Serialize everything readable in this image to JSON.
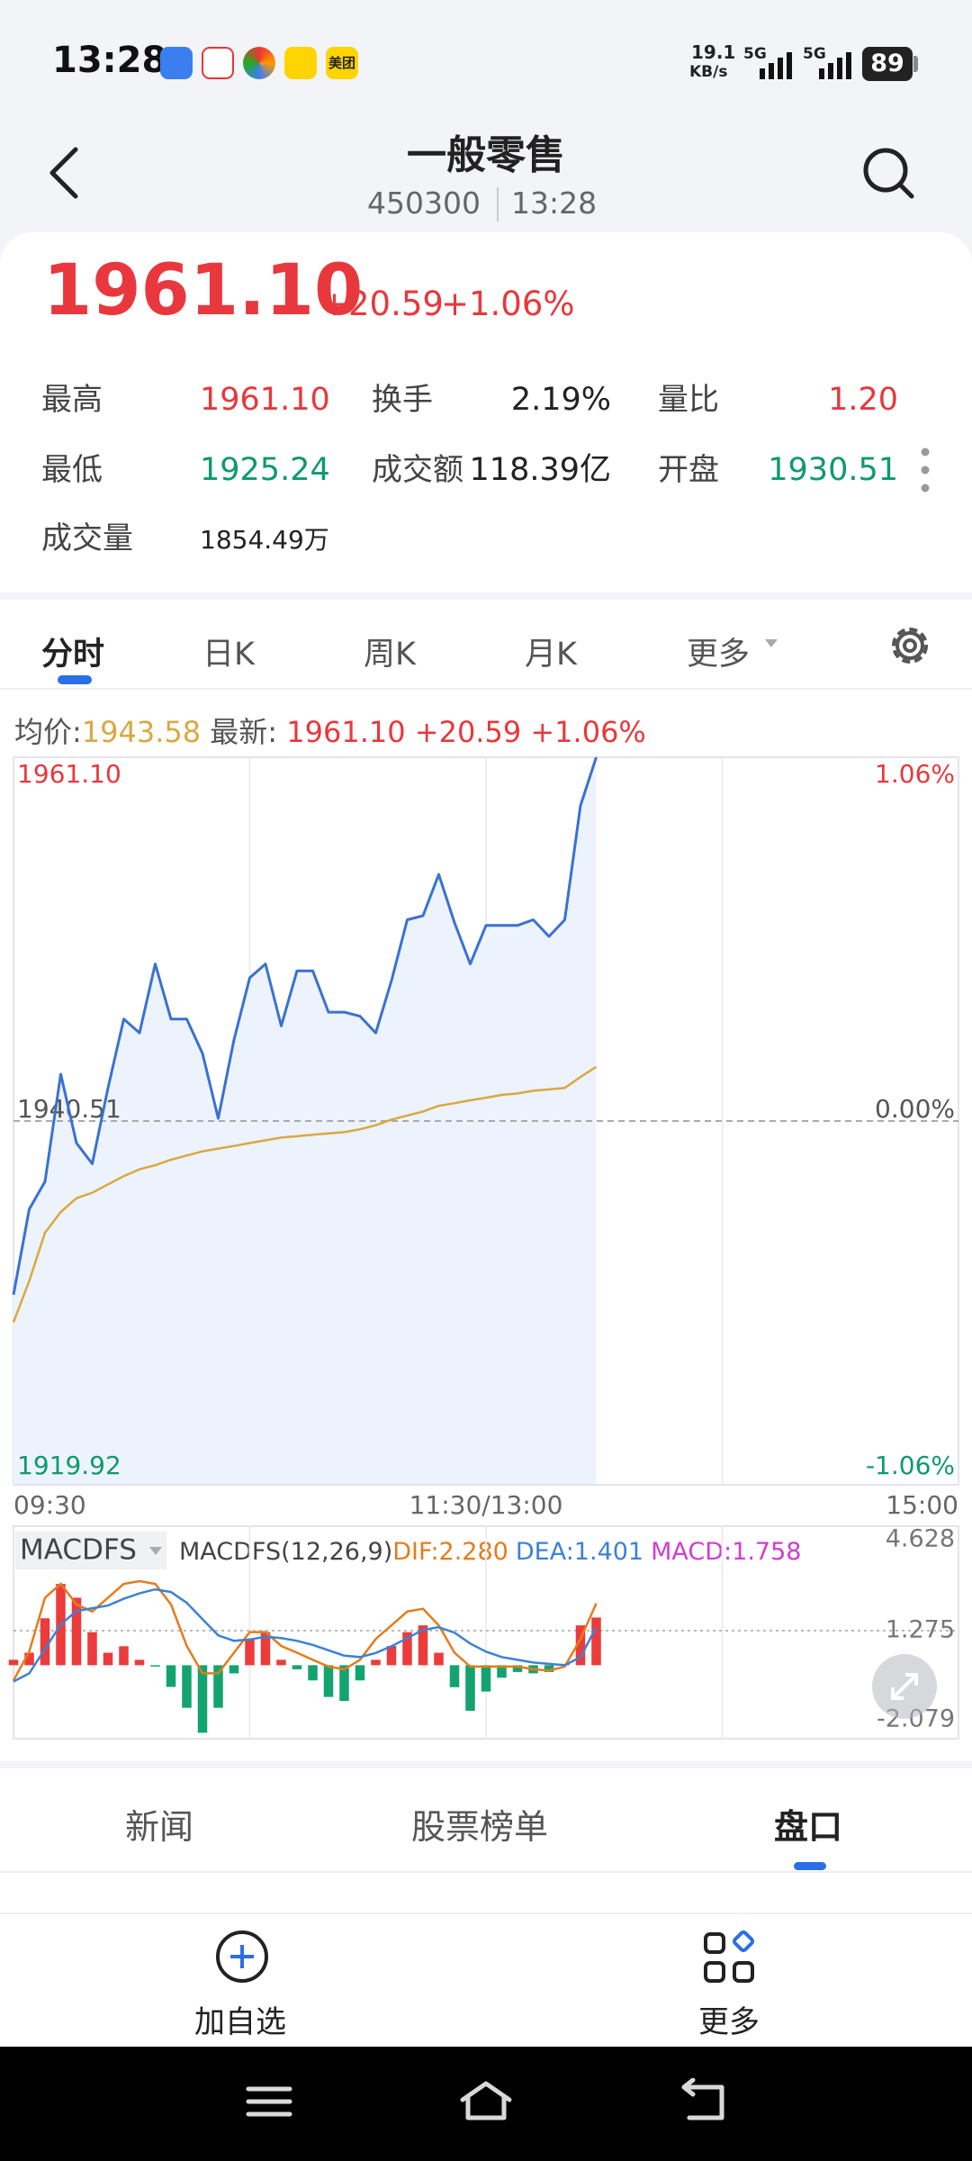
{
  "status_bar": {
    "time": "13:28",
    "app": "美团",
    "speed": "19.1",
    "speed_unit": "KB/s",
    "network": [
      "5G",
      "5G"
    ],
    "battery": "89"
  },
  "header": {
    "title": "一般零售",
    "code": "450300",
    "time": "13:28"
  },
  "quote": {
    "price": "1961.10",
    "change": "+20.59",
    "change_pct": "+1.06%"
  },
  "stats": [
    {
      "label": "最高",
      "value": "1961.10"
    },
    {
      "label": "换手",
      "value": "2.19%"
    },
    {
      "label": "量比",
      "value": "1.20"
    },
    {
      "label": "最低",
      "value": "1925.24"
    },
    {
      "label": "成交额",
      "value": "118.39亿"
    },
    {
      "label": "开盘",
      "value": "1930.51"
    },
    {
      "label": "成交量",
      "value": "1854.49万"
    }
  ],
  "tabs": [
    "分时",
    "日K",
    "周K",
    "月K",
    "更多"
  ],
  "chart_data": [
    {
      "type": "line",
      "legend": [
        {
          "label": "均价:",
          "value": "1943.58"
        },
        {
          "label": "最新:",
          "value": "1961.10 +20.59 +1.06%"
        }
      ],
      "xlim": [
        0,
        240
      ],
      "xticks": [
        {
          "value": 0,
          "label": "09:30"
        },
        {
          "value": 120,
          "label": "11:30/13:00"
        },
        {
          "value": 240,
          "label": "15:00"
        }
      ],
      "ylim": [
        1919.92,
        1961.1
      ],
      "yticks": [
        {
          "value": 1961.1,
          "label": "1961.10"
        },
        {
          "value": 1940.51,
          "label": "1940.51"
        },
        {
          "value": 1919.92,
          "label": "1919.92"
        }
      ],
      "y2lim": [
        -1.06,
        1.06
      ],
      "y2ticks": [
        {
          "value": 1.06,
          "label": "1.06%"
        },
        {
          "value": 0,
          "label": "0.00%"
        },
        {
          "value": -1.06,
          "label": "-1.06%"
        }
      ],
      "x": [
        0,
        4,
        8,
        12,
        16,
        20,
        24,
        28,
        32,
        36,
        40,
        44,
        48,
        52,
        56,
        60,
        64,
        68,
        72,
        76,
        80,
        84,
        88,
        92,
        96,
        100,
        104,
        108,
        112,
        116,
        120,
        124,
        128,
        132,
        136,
        140,
        144,
        148
      ],
      "series": [
        {
          "color": "#3a72d0",
          "fill": "#edf3fd",
          "values": [
            1930.68,
            1935.52,
            1937.08,
            1943.16,
            1939.26,
            1938.09,
            1942.38,
            1946.28,
            1945.5,
            1949.4,
            1946.28,
            1946.28,
            1944.33,
            1940.66,
            1945.11,
            1948.62,
            1949.4,
            1945.89,
            1949.01,
            1949.01,
            1946.67,
            1946.67,
            1946.44,
            1945.5,
            1948.46,
            1951.9,
            1952.13,
            1954.47,
            1951.74,
            1949.4,
            1951.58,
            1951.58,
            1951.58,
            1951.9,
            1950.96,
            1951.9,
            1958.37,
            1961.1
          ]
        },
        {
          "color": "#d9a941",
          "values": [
            1929.12,
            1931.46,
            1934.19,
            1935.36,
            1936.14,
            1936.45,
            1936.92,
            1937.39,
            1937.78,
            1938.01,
            1938.32,
            1938.56,
            1938.79,
            1938.95,
            1939.1,
            1939.26,
            1939.42,
            1939.57,
            1939.65,
            1939.73,
            1939.81,
            1939.88,
            1940.04,
            1940.27,
            1940.59,
            1940.82,
            1941.05,
            1941.37,
            1941.52,
            1941.68,
            1941.83,
            1941.99,
            1942.07,
            1942.22,
            1942.3,
            1942.38,
            1943.0,
            1943.58
          ]
        }
      ]
    },
    {
      "type": "macd",
      "title": "MACDFS",
      "subtitle": "MACDFS(12,26,9)",
      "xlim": [
        0,
        240
      ],
      "ylim": [
        -2.079,
        4.628
      ],
      "yticks": [
        4.628,
        1.275,
        -2.079
      ],
      "x": [
        0,
        4,
        8,
        12,
        16,
        20,
        24,
        28,
        32,
        36,
        40,
        44,
        48,
        52,
        56,
        60,
        64,
        68,
        72,
        76,
        80,
        84,
        88,
        92,
        96,
        100,
        104,
        108,
        112,
        116,
        120,
        124,
        128,
        132,
        136,
        140,
        144,
        148
      ],
      "series": [
        {
          "legend": "DIF:2.280",
          "color": "#e57c1b",
          "values": [
            -0.56,
            0.5,
            2.49,
            3.0,
            2.24,
            1.98,
            2.49,
            3.0,
            3.1,
            3.0,
            2.24,
            0.71,
            -0.3,
            -0.3,
            0.46,
            1.22,
            1.22,
            0.71,
            0.46,
            0.2,
            -0.05,
            -0.15,
            0.2,
            0.97,
            1.47,
            1.98,
            2.08,
            1.47,
            0.46,
            -0.05,
            -0.05,
            -0.05,
            -0.05,
            -0.15,
            -0.2,
            -0.05,
            0.97,
            2.28
          ]
        },
        {
          "legend": "DEA:1.401",
          "color": "#3b82d6",
          "values": [
            -0.6,
            -0.3,
            0.6,
            1.5,
            2.0,
            2.1,
            2.2,
            2.45,
            2.65,
            2.8,
            2.7,
            2.3,
            1.7,
            1.1,
            0.9,
            0.95,
            1.05,
            1.0,
            0.9,
            0.75,
            0.55,
            0.35,
            0.3,
            0.45,
            0.7,
            1.0,
            1.3,
            1.4,
            1.2,
            0.8,
            0.5,
            0.3,
            0.2,
            0.1,
            0.05,
            0.0,
            0.3,
            1.401
          ]
        },
        {
          "legend": "MACD:1.758",
          "color": "#d23cd2",
          "up_color": "#ec3b3b",
          "down_color": "#13a36f",
          "values": [
            0.2,
            0.46,
            1.73,
            3.0,
            2.49,
            1.22,
            0.46,
            0.7,
            0.2,
            -0.05,
            -0.8,
            -1.57,
            -2.49,
            -1.57,
            -0.3,
            0.97,
            1.22,
            0.2,
            -0.15,
            -0.56,
            -1.17,
            -1.32,
            -0.56,
            0.2,
            0.71,
            1.22,
            1.47,
            0.46,
            -0.81,
            -1.68,
            -0.97,
            -0.46,
            -0.25,
            -0.3,
            -0.25,
            0.05,
            1.47,
            1.758
          ]
        }
      ]
    }
  ],
  "bottom_tabs": [
    "新闻",
    "股票榜单",
    "盘口"
  ],
  "toolbar": [
    "加自选",
    "更多"
  ]
}
